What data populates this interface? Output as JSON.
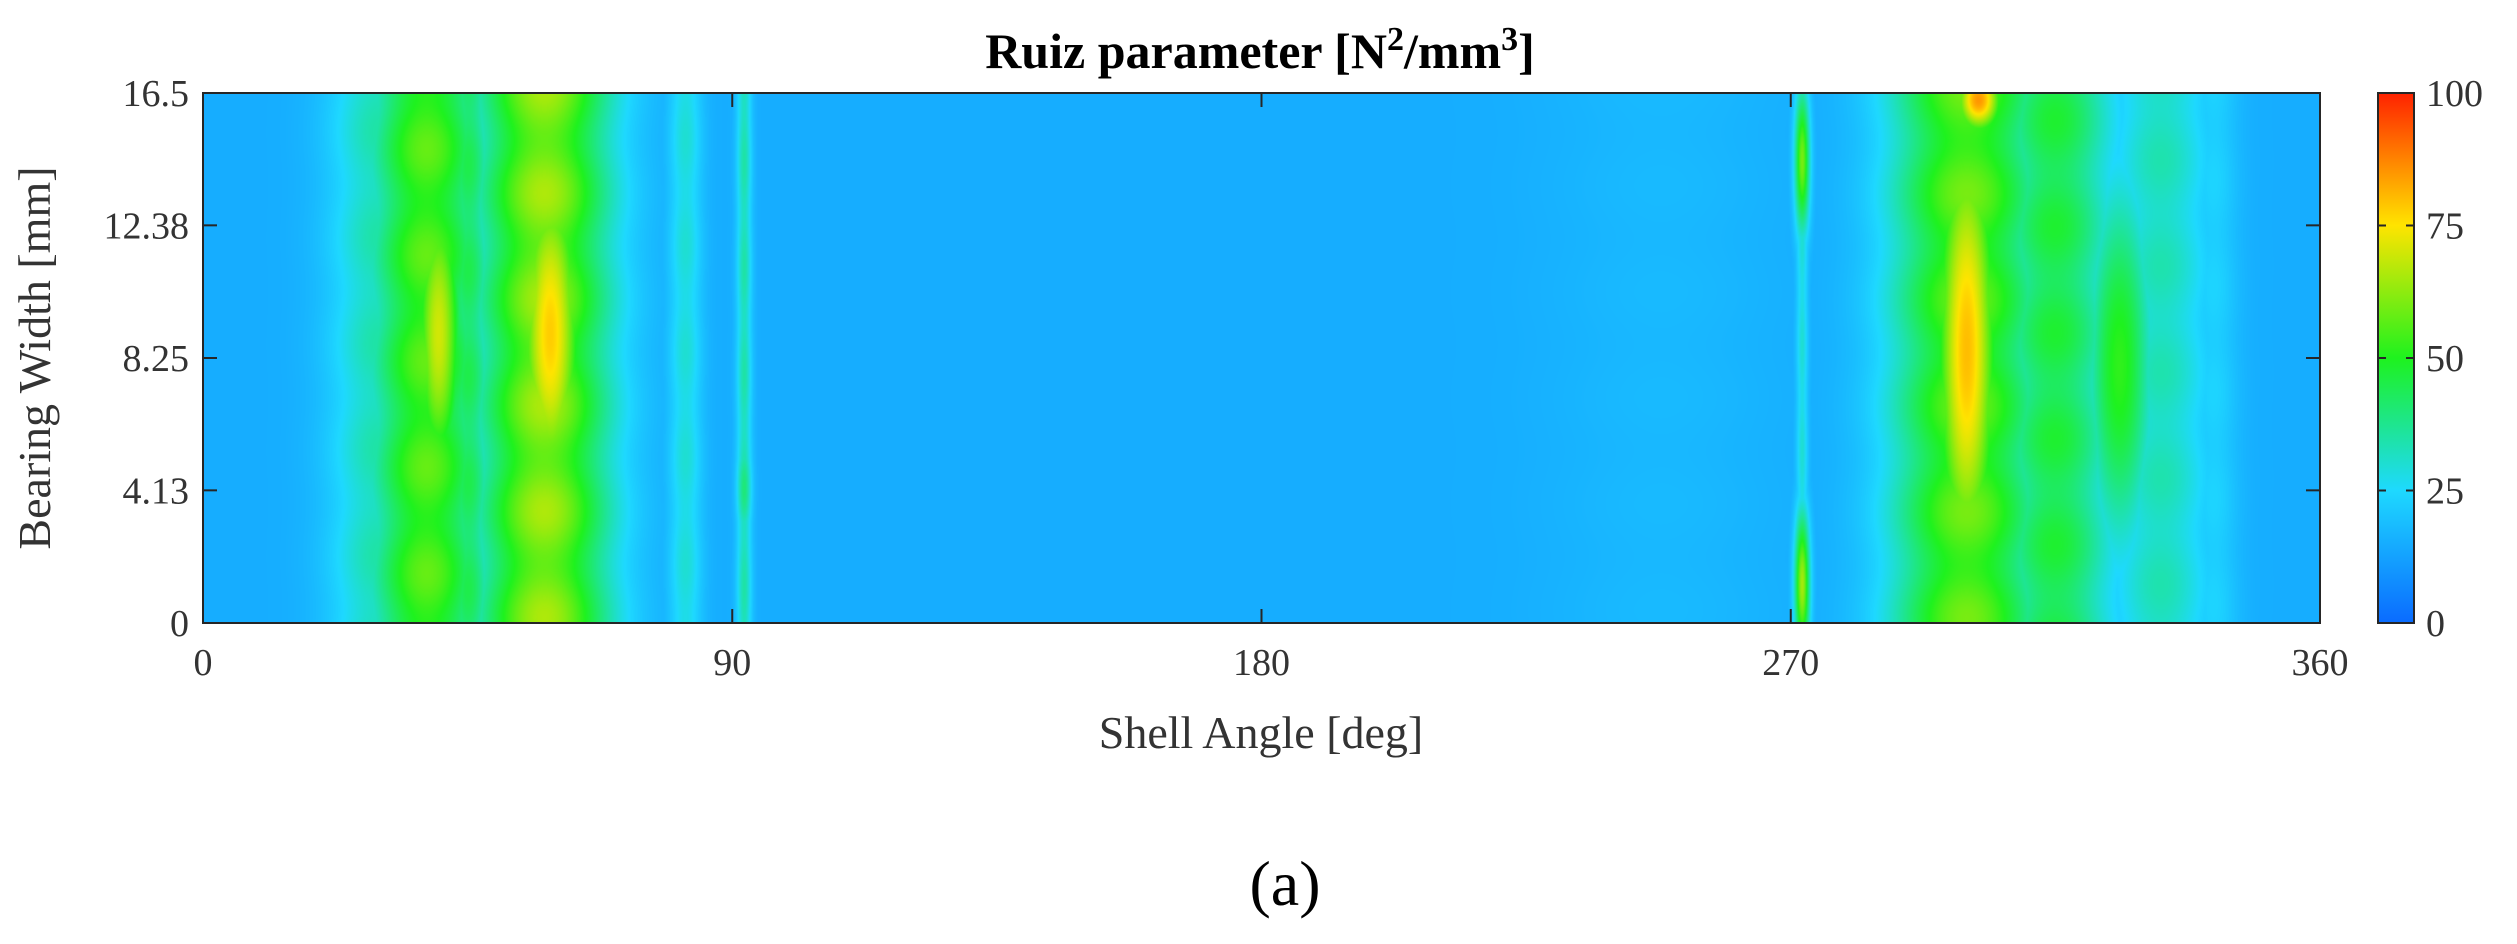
{
  "chart_data": {
    "type": "heatmap",
    "title": "Ruiz parameter [N2/mm3]",
    "title_parts": {
      "main": "Ruiz parameter [N",
      "sup1": "2",
      "mid": "/mm",
      "sup2": "3",
      "end": "]"
    },
    "xlabel": "Shell Angle [deg]",
    "ylabel": "Bearing Width [mm]",
    "xlim": [
      0,
      360
    ],
    "ylim": [
      0,
      16.5
    ],
    "x_ticks": [
      "0",
      "90",
      "180",
      "270",
      "360"
    ],
    "y_ticks": [
      "0",
      "4.13",
      "8.25",
      "12.38",
      "16.5"
    ],
    "colorbar": {
      "range": [
        0,
        100
      ],
      "ticks": [
        "0",
        "25",
        "50",
        "75",
        "100"
      ],
      "colormap": "jet"
    },
    "baseline_value": 15,
    "features": [
      {
        "center_deg": 30,
        "width_deg": 6,
        "peak_value": 35,
        "profile": "band"
      },
      {
        "center_deg": 38,
        "width_deg": 7,
        "peak_value": 58,
        "profile": "band"
      },
      {
        "center_deg": 40,
        "width_deg": 3,
        "peak_value": 70,
        "profile": "lobe",
        "y_center_mm": 9.0,
        "y_width_mm": 3.5
      },
      {
        "center_deg": 45,
        "width_deg": 3,
        "peak_value": 45,
        "profile": "band"
      },
      {
        "center_deg": 58,
        "width_deg": 8,
        "peak_value": 66,
        "profile": "band"
      },
      {
        "center_deg": 59,
        "width_deg": 4,
        "peak_value": 78,
        "profile": "lobe",
        "y_center_mm": 9.0,
        "y_width_mm": 4.0
      },
      {
        "center_deg": 82,
        "width_deg": 2,
        "peak_value": 30,
        "profile": "band"
      },
      {
        "center_deg": 92,
        "width_deg": 0.9,
        "peak_value": 35,
        "profile": "band"
      },
      {
        "center_deg": 92,
        "width_deg": 0.9,
        "peak_value": 40,
        "profile": "lobe",
        "y_center_mm": 4.2,
        "y_width_mm": 1.2
      },
      {
        "center_deg": 120,
        "width_deg": 10,
        "peak_value": 8,
        "profile": "band"
      },
      {
        "center_deg": 248,
        "width_deg": 14,
        "peak_value": 18,
        "profile": "band"
      },
      {
        "center_deg": 278,
        "width_deg": 4,
        "peak_value": 16,
        "profile": "band"
      },
      {
        "center_deg": 272,
        "width_deg": 0.9,
        "peak_value": 60,
        "profile": "lobe",
        "y_center_mm": 14.4,
        "y_width_mm": 1.6
      },
      {
        "center_deg": 272,
        "width_deg": 0.9,
        "peak_value": 65,
        "profile": "lobe",
        "y_center_mm": 1.2,
        "y_width_mm": 1.6
      },
      {
        "center_deg": 272,
        "width_deg": 0.7,
        "peak_value": 30,
        "profile": "band"
      },
      {
        "center_deg": 290,
        "width_deg": 3,
        "peak_value": 25,
        "profile": "band"
      },
      {
        "center_deg": 300,
        "width_deg": 9,
        "peak_value": 60,
        "profile": "band"
      },
      {
        "center_deg": 300,
        "width_deg": 4,
        "peak_value": 80,
        "profile": "lobe",
        "y_center_mm": 8.5,
        "y_width_mm": 5.5
      },
      {
        "center_deg": 302,
        "width_deg": 3,
        "peak_value": 85,
        "profile": "lobe",
        "y_center_mm": 16.3,
        "y_width_mm": 0.8
      },
      {
        "center_deg": 315,
        "width_deg": 7,
        "peak_value": 48,
        "profile": "band"
      },
      {
        "center_deg": 326,
        "width_deg": 4,
        "peak_value": 52,
        "profile": "lobe",
        "y_center_mm": 8.0,
        "y_width_mm": 4.0
      },
      {
        "center_deg": 333,
        "width_deg": 6,
        "peak_value": 34,
        "profile": "band"
      },
      {
        "center_deg": 342,
        "width_deg": 3,
        "peak_value": 24,
        "profile": "band"
      }
    ]
  },
  "panel_label": "(a)"
}
